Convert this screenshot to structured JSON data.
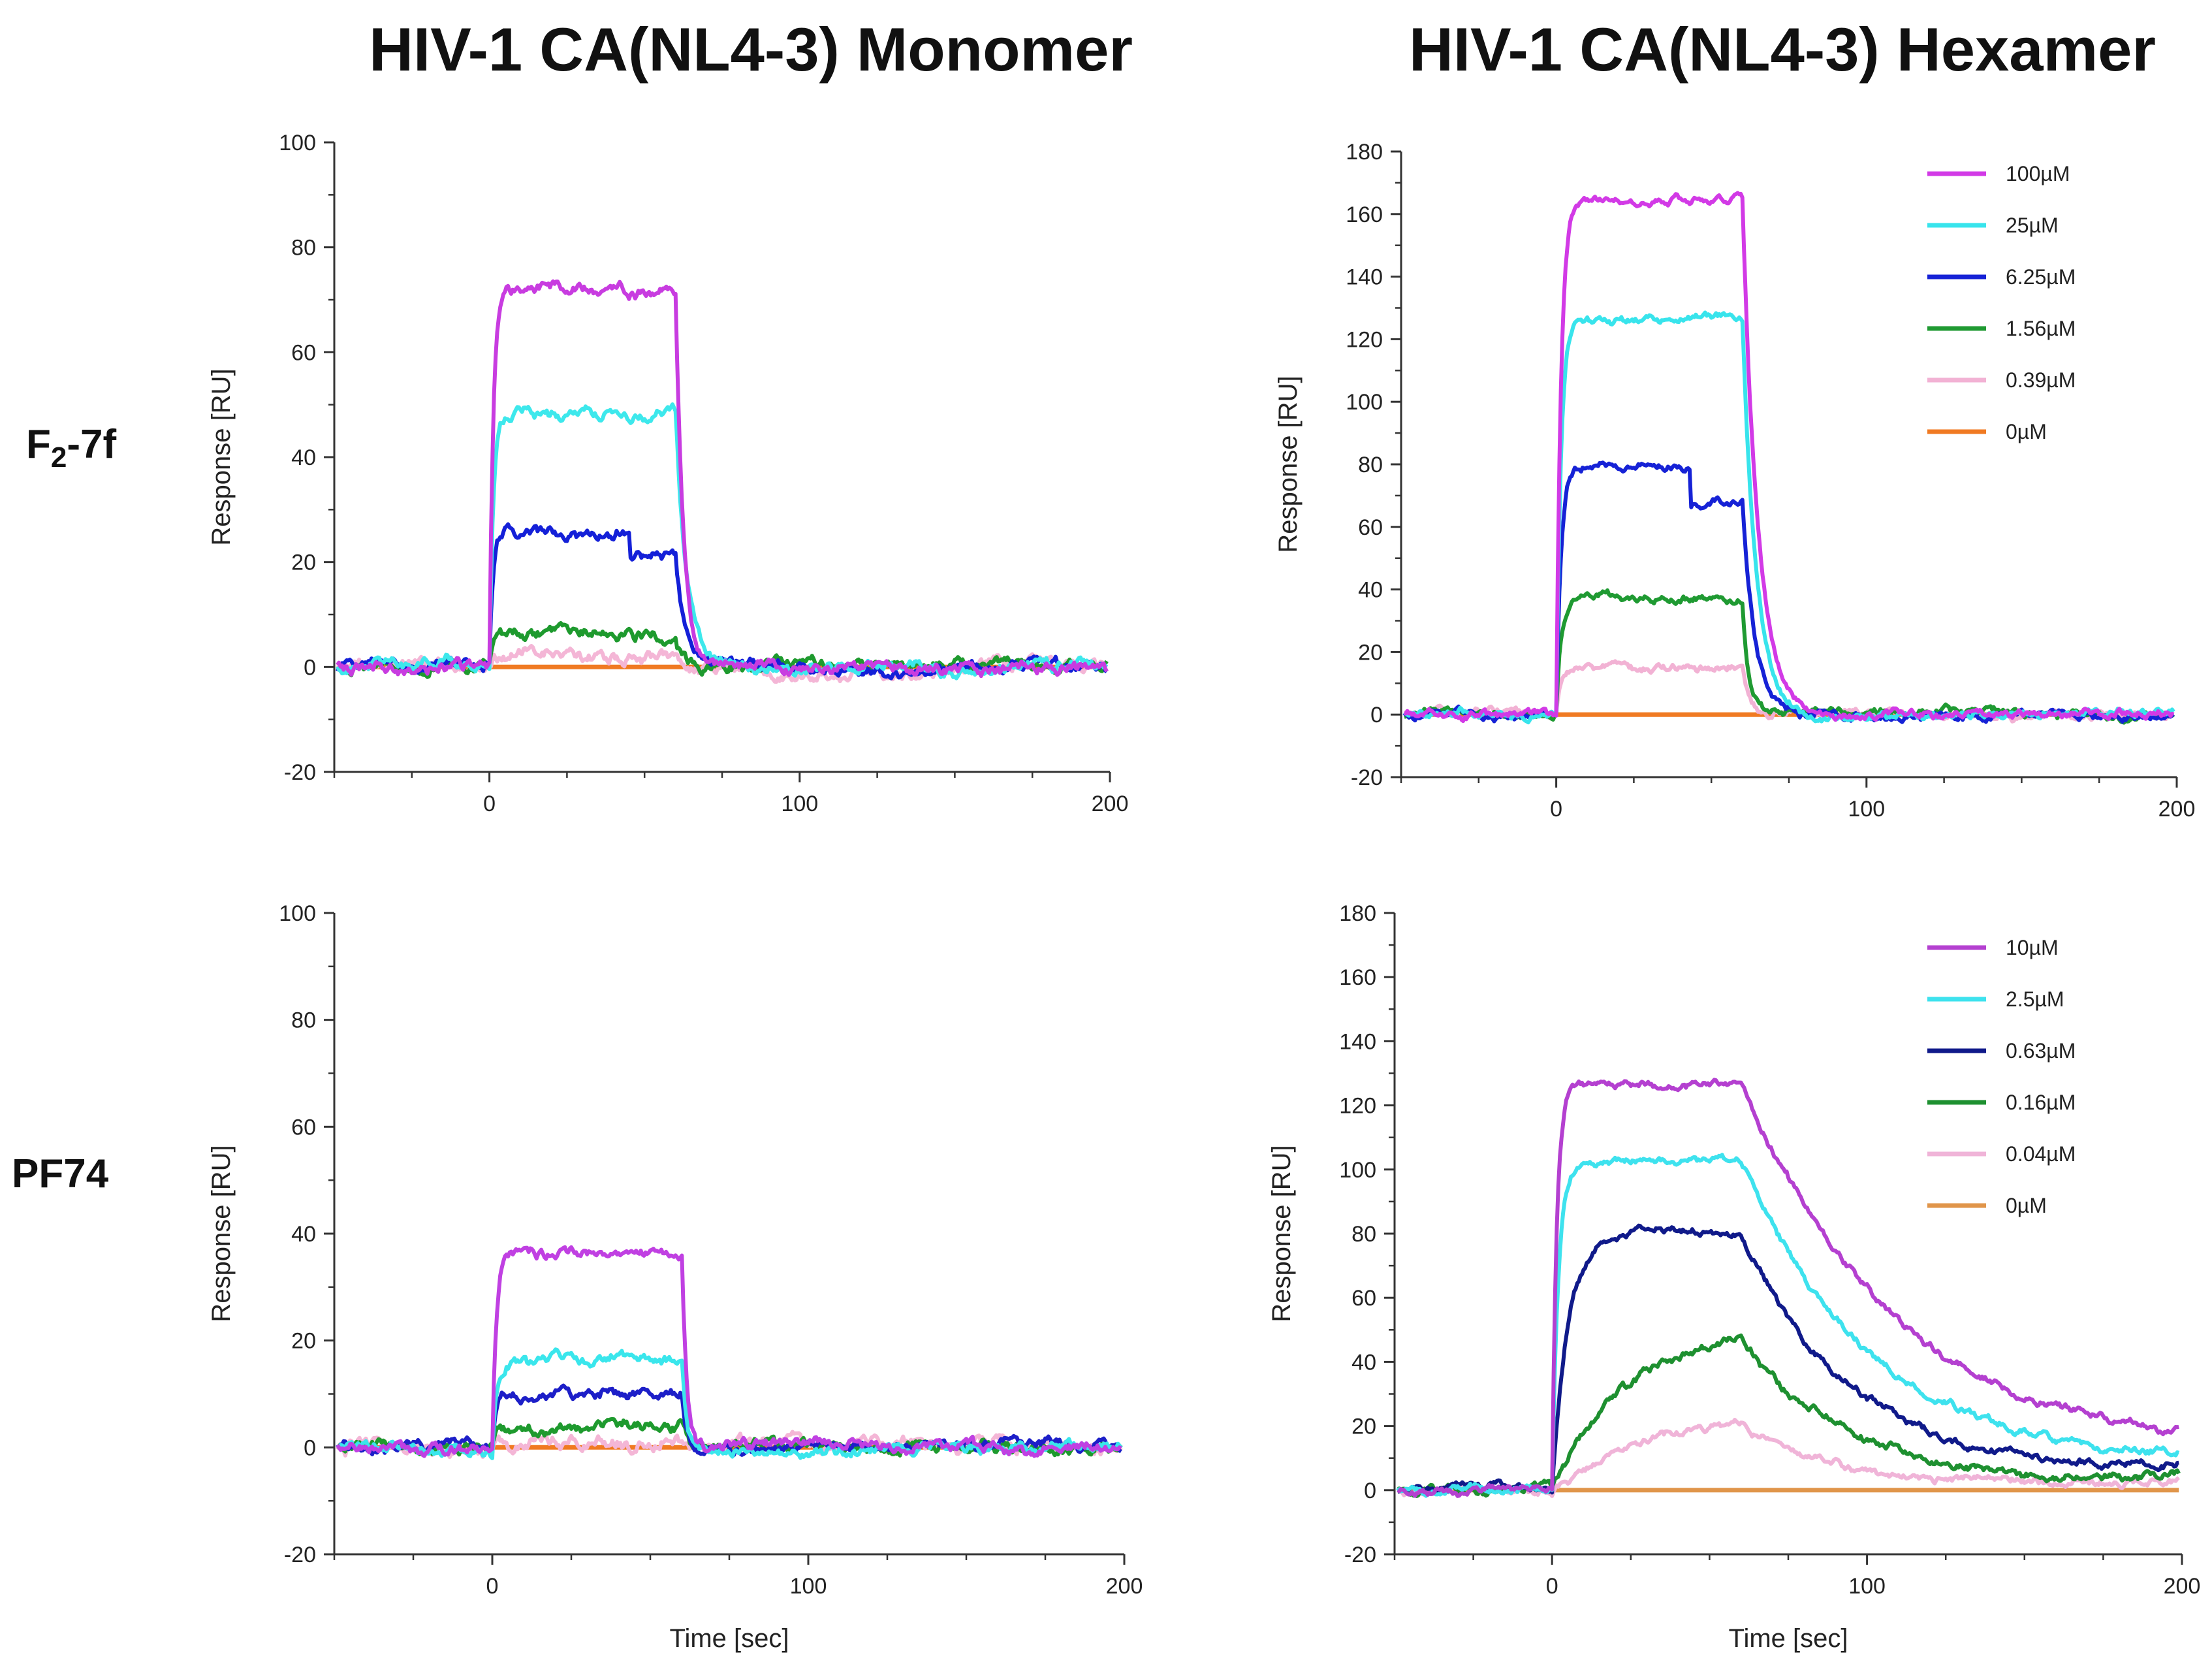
{
  "figure": {
    "col_titles": [
      "HIV-1 CA(NL4-3) Monomer",
      "HIV-1 CA(NL4-3) Hexamer"
    ],
    "row_labels": [
      {
        "main": "F",
        "sub": "2",
        "rest": "-7f"
      },
      {
        "main": "PF74",
        "sub": "",
        "rest": ""
      }
    ]
  },
  "chart_data": [
    {
      "id": "f27f-monomer",
      "type": "line",
      "compound": "F2-7f",
      "target": "HIV-1 CA(NL4-3) Monomer",
      "xlabel": "",
      "ylabel": "Response [RU]",
      "xlim": [
        -50,
        200
      ],
      "ylim": [
        -20,
        100
      ],
      "xticks": [
        0,
        100,
        200
      ],
      "yticks": [
        -20,
        0,
        20,
        40,
        60,
        80,
        100
      ],
      "legend": false,
      "series": [
        {
          "color": "#c83ce0",
          "plateau": 72,
          "tau_on": 1.2,
          "tau_off": 2.5,
          "noise": 1.3
        },
        {
          "color": "#3de8ec",
          "plateau": 48,
          "tau_on": 1.2,
          "tau_off": 3.5,
          "noise": 1.3
        },
        {
          "color": "#1420d8",
          "plateau": 26,
          "tau_on": 1.2,
          "tau_off": 3,
          "noise": 1.3,
          "dip_at": 45,
          "dip": 5
        },
        {
          "color": "#1e9a2e",
          "plateau": 6,
          "tau_on": 1.2,
          "tau_off": 2,
          "noise": 1.3
        },
        {
          "color": "#f4b6d6",
          "plateau": 2,
          "tau_on": 1.2,
          "tau_off": 2,
          "noise": 1.4
        },
        {
          "color": "#f07a22",
          "plateau": 0,
          "tau_on": 1,
          "tau_off": 1,
          "noise": 0
        }
      ]
    },
    {
      "id": "f27f-hexamer",
      "type": "line",
      "compound": "F2-7f",
      "target": "HIV-1 CA(NL4-3) Hexamer",
      "xlabel": "",
      "ylabel": "Response [RU]",
      "xlim": [
        -50,
        200
      ],
      "ylim": [
        -20,
        180
      ],
      "xticks": [
        0,
        100,
        200
      ],
      "yticks": [
        -20,
        0,
        20,
        40,
        60,
        80,
        100,
        120,
        140,
        160,
        180
      ],
      "legend": true,
      "series": [
        {
          "name": "100µM",
          "color": "#d23ae6",
          "plateau": 165,
          "tau_on": 1.5,
          "tau_off": 5,
          "noise": 1.5
        },
        {
          "name": "25µM",
          "color": "#38e4ec",
          "plateau": 127,
          "tau_on": 1.5,
          "tau_off": 4.5,
          "noise": 1.5
        },
        {
          "name": "6.25µM",
          "color": "#1622d6",
          "plateau": 80,
          "tau_on": 1.5,
          "tau_off": 4,
          "noise": 1.5,
          "dip_at": 43,
          "dip": 12
        },
        {
          "name": "1.56µM",
          "color": "#1f9a32",
          "plateau": 37,
          "tau_on": 1.5,
          "tau_off": 2,
          "noise": 1.5
        },
        {
          "name": "0.39µM",
          "color": "#f2b2d4",
          "plateau": 15,
          "tau_on": 1.5,
          "tau_off": 2,
          "noise": 1.5
        },
        {
          "name": "0µM",
          "color": "#f07a22",
          "plateau": 0,
          "tau_on": 1,
          "tau_off": 1,
          "noise": 0
        }
      ]
    },
    {
      "id": "pf74-monomer",
      "type": "line",
      "compound": "PF74",
      "target": "HIV-1 CA(NL4-3) Monomer",
      "xlabel": "Time [sec]",
      "ylabel": "Response [RU]",
      "xlim": [
        -50,
        200
      ],
      "ylim": [
        -20,
        100
      ],
      "xticks": [
        0,
        100,
        200
      ],
      "yticks": [
        -20,
        0,
        20,
        40,
        60,
        80,
        100
      ],
      "legend": false,
      "series": [
        {
          "color": "#c040e2",
          "plateau": 37,
          "tau_on": 1.2,
          "tau_off": 1.5,
          "noise": 1.2
        },
        {
          "color": "#3ae6ec",
          "plateau": 17,
          "tau_on": 1.2,
          "tau_off": 1.5,
          "noise": 1.2
        },
        {
          "color": "#1d1fc8",
          "plateau": 10,
          "tau_on": 1.2,
          "tau_off": 1.5,
          "noise": 1.2
        },
        {
          "color": "#1e9a2e",
          "plateau": 4,
          "tau_on": 1.2,
          "tau_off": 1.5,
          "noise": 1.3
        },
        {
          "color": "#f4b6d6",
          "plateau": 1,
          "tau_on": 1.2,
          "tau_off": 1.5,
          "noise": 1.5
        },
        {
          "color": "#f07a22",
          "plateau": 0,
          "tau_on": 1,
          "tau_off": 1,
          "noise": 0
        }
      ]
    },
    {
      "id": "pf74-hexamer",
      "type": "line",
      "compound": "PF74",
      "target": "HIV-1 CA(NL4-3) Hexamer",
      "xlabel": "Time [sec]",
      "ylabel": "Response [RU]",
      "xlim": [
        -50,
        200
      ],
      "ylim": [
        -20,
        180
      ],
      "xticks": [
        0,
        100,
        200
      ],
      "yticks": [
        -20,
        0,
        20,
        40,
        60,
        80,
        100,
        120,
        140,
        160,
        180
      ],
      "legend": true,
      "series": [
        {
          "name": "10µM",
          "color": "#b440d0",
          "plateau": 127,
          "tau_on": 1.5,
          "tau_off": 55,
          "end": 9,
          "noise": 1.4
        },
        {
          "name": "2.5µM",
          "color": "#3ee2ee",
          "plateau": 103,
          "tau_on": 2,
          "tau_off": 45,
          "end": 7,
          "noise": 1.4
        },
        {
          "name": "0.63µM",
          "color": "#101a8a",
          "plateau": 80,
          "tau_on": 5,
          "tau_off": 38,
          "end": 6,
          "noise": 1.4
        },
        {
          "name": "0.16µM",
          "color": "#1e9030",
          "plateau": 52,
          "tau_on": 25,
          "tau_off": 35,
          "end": 3,
          "noise": 1.6
        },
        {
          "name": "0.04µM",
          "color": "#f0b4d8",
          "plateau": 23,
          "tau_on": 30,
          "tau_off": 30,
          "end": 3,
          "noise": 1.4
        },
        {
          "name": "0µM",
          "color": "#e0954a",
          "plateau": 0,
          "tau_on": 1,
          "tau_off": 1,
          "noise": 0
        }
      ]
    }
  ]
}
